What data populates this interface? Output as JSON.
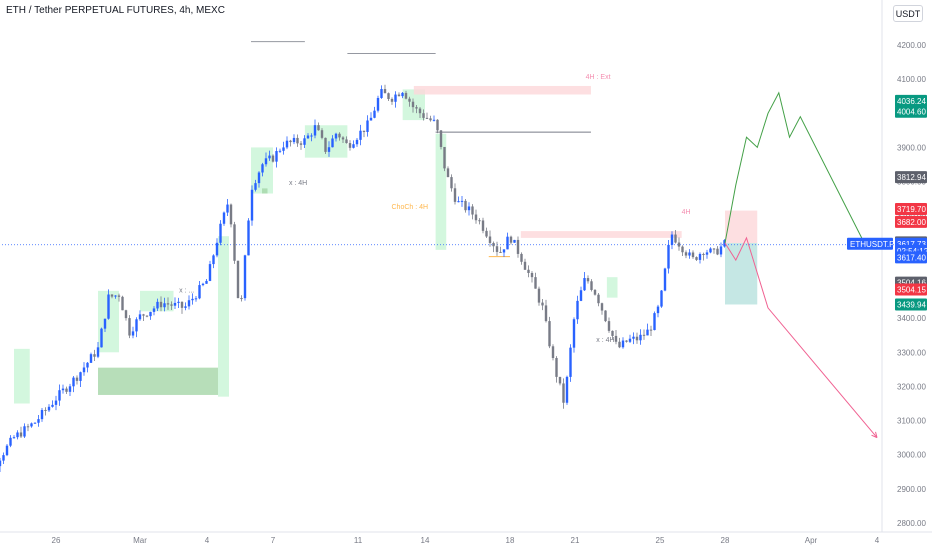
{
  "header": {
    "title": "ETH / Tether PERPETUAL FUTURES, 4h, MEXC",
    "currency_button": "USDT"
  },
  "colors": {
    "up": "#2962ff",
    "down": "#787b86",
    "demand_zone": "#c8f5d6",
    "supply_zone": "#fcd7da",
    "green_path": "#43a047",
    "red_path": "#f06292",
    "price_line": "#2962ff"
  },
  "chart_data": {
    "type": "candlestick",
    "y_axis": {
      "min": 2790,
      "max": 4260,
      "ticks": [
        4200,
        4100,
        4000,
        3900,
        3800,
        3700,
        3600,
        3500,
        3400,
        3300,
        3200,
        3100,
        3000,
        2900,
        2800
      ],
      "tick_labels": [
        "4200.00",
        "4100.00",
        "4000.00",
        "3900.00",
        "3800.00",
        "3700.00",
        "3600.00",
        "3500.00",
        "3400.00",
        "3300.00",
        "3200.00",
        "3100.00",
        "3000.00",
        "2900.00",
        "2800.00"
      ]
    },
    "x_axis": {
      "labels": [
        "26",
        "Mar",
        "4",
        "7",
        "11",
        "14",
        "18",
        "21",
        "25",
        "28",
        "Apr",
        "4"
      ],
      "label_dates": [
        "2024-02-26",
        "2024-03-01",
        "2024-03-04",
        "2024-03-07",
        "2024-03-11",
        "2024-03-14",
        "2024-03-18",
        "2024-03-21",
        "2024-03-25",
        "2024-03-28",
        "2024-04-01",
        "2024-04-04"
      ]
    },
    "price_path": [
      [
        "2024-02-22 00:00",
        2930
      ],
      [
        "2024-02-23 00:00",
        2965
      ],
      [
        "2024-02-24 00:00",
        3050
      ],
      [
        "2024-02-25 00:00",
        3095
      ],
      [
        "2024-02-26 00:00",
        3165
      ],
      [
        "2024-02-27 00:00",
        3230
      ],
      [
        "2024-02-28 00:00",
        3310
      ],
      [
        "2024-02-28 12:00",
        3460
      ],
      [
        "2024-02-29 00:00",
        3470
      ],
      [
        "2024-02-29 12:00",
        3360
      ],
      [
        "2024-03-01 00:00",
        3405
      ],
      [
        "2024-03-02 00:00",
        3445
      ],
      [
        "2024-03-03 00:00",
        3430
      ],
      [
        "2024-03-04 00:00",
        3510
      ],
      [
        "2024-03-04 12:00",
        3640
      ],
      [
        "2024-03-05 00:00",
        3750
      ],
      [
        "2024-03-05 12:00",
        3400
      ],
      [
        "2024-03-06 00:00",
        3780
      ],
      [
        "2024-03-06 12:00",
        3850
      ],
      [
        "2024-03-07 00:00",
        3870
      ],
      [
        "2024-03-07 12:00",
        3910
      ],
      [
        "2024-03-08 12:00",
        3920
      ],
      [
        "2024-03-09 00:00",
        3960
      ],
      [
        "2024-03-09 12:00",
        3890
      ],
      [
        "2024-03-10 00:00",
        3945
      ],
      [
        "2024-03-10 12:00",
        3905
      ],
      [
        "2024-03-11 12:00",
        3970
      ],
      [
        "2024-03-12 00:00",
        4060
      ],
      [
        "2024-03-12 12:00",
        4045
      ],
      [
        "2024-03-13 00:00",
        4070
      ],
      [
        "2024-03-13 12:00",
        4015
      ],
      [
        "2024-03-14 00:00",
        3990
      ],
      [
        "2024-03-14 12:00",
        3970
      ],
      [
        "2024-03-15 00:00",
        3820
      ],
      [
        "2024-03-15 12:00",
        3740
      ],
      [
        "2024-03-16 00:00",
        3720
      ],
      [
        "2024-03-16 12:00",
        3690
      ],
      [
        "2024-03-17 00:00",
        3640
      ],
      [
        "2024-03-17 12:00",
        3590
      ],
      [
        "2024-03-18 00:00",
        3640
      ],
      [
        "2024-03-18 12:00",
        3580
      ],
      [
        "2024-03-19 00:00",
        3510
      ],
      [
        "2024-03-19 12:00",
        3430
      ],
      [
        "2024-03-20 00:00",
        3270
      ],
      [
        "2024-03-20 12:00",
        3150
      ],
      [
        "2024-03-21 00:00",
        3420
      ],
      [
        "2024-03-21 12:00",
        3520
      ],
      [
        "2024-03-22 00:00",
        3470
      ],
      [
        "2024-03-22 12:00",
        3390
      ],
      [
        "2024-03-23 00:00",
        3310
      ],
      [
        "2024-03-23 12:00",
        3335
      ],
      [
        "2024-03-24 00:00",
        3340
      ],
      [
        "2024-03-24 12:00",
        3365
      ],
      [
        "2024-03-25 00:00",
        3440
      ],
      [
        "2024-03-25 12:00",
        3650
      ],
      [
        "2024-03-26 00:00",
        3610
      ],
      [
        "2024-03-26 12:00",
        3570
      ],
      [
        "2024-03-27 00:00",
        3600
      ],
      [
        "2024-03-27 12:00",
        3590
      ],
      [
        "2024-03-28 00:00",
        3618
      ]
    ],
    "projection_up": [
      [
        "2024-03-28 00:00",
        3620
      ],
      [
        "2024-03-28 12:00",
        3790
      ],
      [
        "2024-03-29 00:00",
        3930
      ],
      [
        "2024-03-29 12:00",
        3900
      ],
      [
        "2024-03-30 00:00",
        4000
      ],
      [
        "2024-03-30 12:00",
        4060
      ],
      [
        "2024-03-31 00:00",
        3930
      ],
      [
        "2024-03-31 12:00",
        3990
      ],
      [
        "2024-04-03 12:00",
        3610
      ]
    ],
    "projection_down": [
      [
        "2024-03-28 00:00",
        3620
      ],
      [
        "2024-03-28 12:00",
        3570
      ],
      [
        "2024-03-29 00:00",
        3635
      ],
      [
        "2024-03-30 00:00",
        3430
      ],
      [
        "2024-04-04 00:00",
        3050
      ]
    ],
    "zones": [
      {
        "kind": "demand",
        "from": "2024-02-24 00:00",
        "to": "2024-02-24 18:00",
        "low": 3150,
        "high": 3310
      },
      {
        "kind": "demand-dark",
        "from": "2024-02-28 00:00",
        "to": "2024-03-04 12:00",
        "low": 3175,
        "high": 3255
      },
      {
        "kind": "demand",
        "from": "2024-02-28 00:00",
        "to": "2024-02-29 00:00",
        "low": 3300,
        "high": 3480
      },
      {
        "kind": "demand",
        "from": "2024-03-01 00:00",
        "to": "2024-03-02 12:00",
        "low": 3420,
        "high": 3480
      },
      {
        "kind": "demand",
        "from": "2024-03-04 12:00",
        "to": "2024-03-05 00:00",
        "low": 3170,
        "high": 3640
      },
      {
        "kind": "demand",
        "from": "2024-03-06 00:00",
        "to": "2024-03-07 00:00",
        "low": 3765,
        "high": 3900
      },
      {
        "kind": "demand-dark",
        "from": "2024-03-06 12:00",
        "to": "2024-03-06 18:00",
        "low": 3765,
        "high": 3780
      },
      {
        "kind": "demand",
        "from": "2024-03-08 12:00",
        "to": "2024-03-10 12:00",
        "low": 3870,
        "high": 3965
      },
      {
        "kind": "demand",
        "from": "2024-03-13 00:00",
        "to": "2024-03-14 00:00",
        "low": 3980,
        "high": 4070
      },
      {
        "kind": "demand",
        "from": "2024-03-14 12:00",
        "to": "2024-03-15 00:00",
        "low": 3600,
        "high": 3940
      },
      {
        "kind": "demand",
        "from": "2024-03-22 12:00",
        "to": "2024-03-23 00:00",
        "low": 3460,
        "high": 3520
      },
      {
        "kind": "supply",
        "from": "2024-03-13 12:00",
        "to": "2024-03-21 18:00",
        "low": 4055,
        "high": 4080
      },
      {
        "kind": "supply",
        "from": "2024-03-18 12:00",
        "to": "2024-03-26 00:00",
        "low": 3635,
        "high": 3655
      },
      {
        "kind": "supply",
        "from": "2024-03-28 00:00",
        "to": "2024-03-29 12:00",
        "low": 3620,
        "high": 3715
      },
      {
        "kind": "target",
        "from": "2024-03-28 00:00",
        "to": "2024-03-29 12:00",
        "low": 3440,
        "high": 3620
      }
    ],
    "level_lines": [
      {
        "price": 3945,
        "from": "2024-03-14 12:00",
        "to": "2024-03-21 18:00",
        "color": "#787b86"
      },
      {
        "price": 4175,
        "from": "2024-03-10 12:00",
        "to": "2024-03-14 12:00",
        "color": "#9598a1"
      },
      {
        "price": 4210,
        "from": "2024-03-06 00:00",
        "to": "2024-03-08 12:00",
        "color": "#9598a1"
      },
      {
        "price": 3580,
        "from": "2024-03-17 00:00",
        "to": "2024-03-18 00:00",
        "color": "#ffb74d"
      },
      {
        "price": 3615,
        "from": "2024-02-18 00:00",
        "to": "2024-04-05 00:00",
        "color": "#2962ff",
        "dotted": true
      }
    ],
    "annotations": [
      {
        "text": "4H : Ext",
        "date": "2024-03-21 12:00",
        "price": 4100,
        "color": "#f48fb1"
      },
      {
        "text": "x : 4H",
        "date": "2024-03-07 18:00",
        "price": 3790,
        "color": "#787b86"
      },
      {
        "text": "ChoCh : 4H",
        "date": "2024-03-12 12:00",
        "price": 3720,
        "color": "#ffb74d"
      },
      {
        "text": "4H",
        "date": "2024-03-26 00:00",
        "price": 3705,
        "color": "#f48fb1"
      },
      {
        "text": "x : 4H",
        "date": "2024-03-22 00:00",
        "price": 3330,
        "color": "#787b86"
      },
      {
        "text": "x : ...",
        "date": "2024-03-02 18:00",
        "price": 3475,
        "color": "#787b86"
      }
    ],
    "price_labels": [
      {
        "text": "4036.24",
        "price": 4036.24,
        "bg": "#089981",
        "fg": "#ffffff"
      },
      {
        "text": "4004.60",
        "price": 4004.6,
        "bg": "#089981",
        "fg": "#ffffff"
      },
      {
        "text": "3812.94",
        "price": 3812.94,
        "bg": "#5d606b",
        "fg": "#ffffff"
      },
      {
        "text": "3719.70",
        "price": 3719.7,
        "bg": "#f23645",
        "fg": "#ffffff"
      },
      {
        "text": "3682.00",
        "price": 3682.0,
        "bg": "#f23645",
        "fg": "#ffffff"
      },
      {
        "text": "3621.90",
        "price": 3621.9,
        "bg": "#5d606b",
        "fg": "#ffffff"
      },
      {
        "text": "3617.73",
        "price": 3617.73,
        "bg": "#2962ff",
        "fg": "#ffffff"
      },
      {
        "text": "02:54:12",
        "price": 3597,
        "bg": "#2962ff",
        "fg": "#ffffff"
      },
      {
        "text": "3617.40",
        "price": 3578,
        "bg": "#2962ff",
        "fg": "#ffffff"
      },
      {
        "text": "3504.16",
        "price": 3504.16,
        "bg": "#5d606b",
        "fg": "#ffffff"
      },
      {
        "text": "3504.15",
        "price": 3484,
        "bg": "#f23645",
        "fg": "#ffffff"
      },
      {
        "text": "3439.94",
        "price": 3439.94,
        "bg": "#089981",
        "fg": "#ffffff"
      }
    ],
    "symbol_tag": {
      "text": "ETHUSDT.P",
      "price": 3617.73
    },
    "grid": false
  }
}
